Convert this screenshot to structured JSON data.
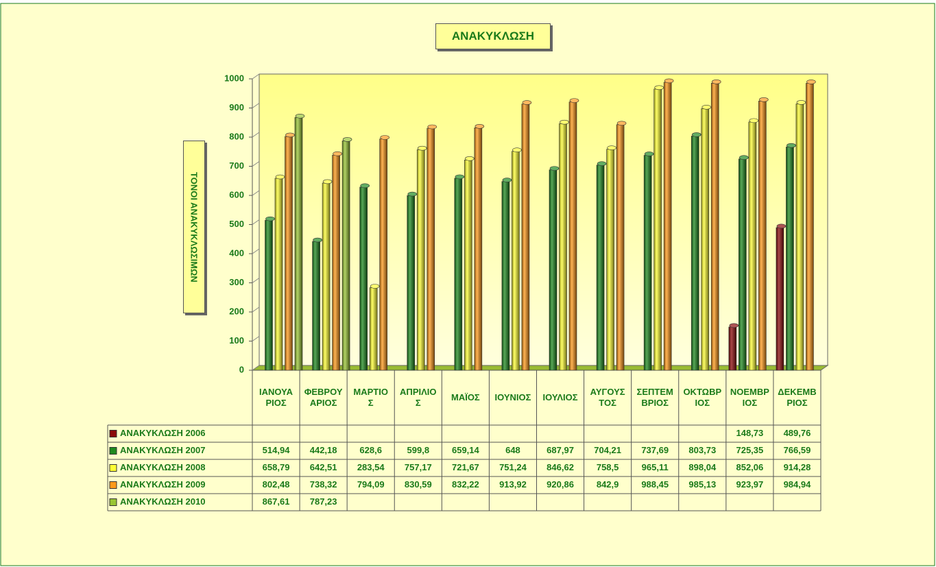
{
  "chart_data": {
    "type": "bar3d",
    "title": "ΑΝΑΚΥΚΛΩΣΗ",
    "y_label": "ΤΟΝΟΙ ΑΝΑΚΥΚΛΩΣΙΜΩΝ",
    "categories": [
      "ΙΑΝΟΥΑΡΙΟΣ",
      "ΦΕΒΡΟΥΑΡΙΟΣ",
      "ΜΑΡΤΙΟΣ",
      "ΑΠΡΙΛΙΟΣ",
      "ΜΑΪΟΣ",
      "ΙΟΥΝΙΟΣ",
      "ΙΟΥΛΙΟΣ",
      "ΑΥΓΟΥΣΤΟΣ",
      "ΣΕΠΤΕΜΒΡΙΟΣ",
      "ΟΚΤΩΒΡΙΟΣ",
      "ΝΟΕΜΒΡΙΟΣ",
      "ΔΕΚΕΜΒΡΙΟΣ"
    ],
    "series": [
      {
        "name": "ΑΝΑΚΥΚΛΩΣΗ 2006",
        "color": "#8b0a0a",
        "values": [
          null,
          null,
          null,
          null,
          null,
          null,
          null,
          null,
          null,
          null,
          148.73,
          489.76
        ],
        "value_labels": [
          null,
          null,
          null,
          null,
          null,
          null,
          null,
          null,
          null,
          null,
          "148,73",
          "489,76"
        ]
      },
      {
        "name": "ΑΝΑΚΥΚΛΩΣΗ 2007",
        "color": "#1f8a1f",
        "values": [
          514.94,
          442.18,
          628.6,
          599.8,
          659.14,
          648,
          687.97,
          704.21,
          737.69,
          803.73,
          725.35,
          766.59
        ],
        "value_labels": [
          "514,94",
          "442,18",
          "628,6",
          "599,8",
          "659,14",
          "648",
          "687,97",
          "704,21",
          "737,69",
          "803,73",
          "725,35",
          "766,59"
        ]
      },
      {
        "name": "ΑΝΑΚΥΚΛΩΣΗ 2008",
        "color": "#ffff33",
        "values": [
          658.79,
          642.51,
          283.54,
          757.17,
          721.67,
          751.24,
          846.62,
          758.5,
          965.11,
          898.04,
          852.06,
          914.28
        ],
        "value_labels": [
          "658,79",
          "642,51",
          "283,54",
          "757,17",
          "721,67",
          "751,24",
          "846,62",
          "758,5",
          "965,11",
          "898,04",
          "852,06",
          "914,28"
        ]
      },
      {
        "name": "ΑΝΑΚΥΚΛΩΣΗ 2009",
        "color": "#ff9a1a",
        "values": [
          802.48,
          738.32,
          794.09,
          830.59,
          832.22,
          913.92,
          920.86,
          842.9,
          988.45,
          985.13,
          923.97,
          984.94
        ],
        "value_labels": [
          "802,48",
          "738,32",
          "794,09",
          "830,59",
          "832,22",
          "913,92",
          "920,86",
          "842,9",
          "988,45",
          "985,13",
          "923,97",
          "984,94"
        ]
      },
      {
        "name": "ΑΝΑΚΥΚΛΩΣΗ 2010",
        "color": "#99c633",
        "values": [
          867.61,
          787.23,
          null,
          null,
          null,
          null,
          null,
          null,
          null,
          null,
          null,
          null
        ],
        "value_labels": [
          "867,61",
          "787,23",
          null,
          null,
          null,
          null,
          null,
          null,
          null,
          null,
          null,
          null
        ]
      }
    ],
    "ylim": [
      0,
      1000
    ],
    "yticks": [
      0,
      100,
      200,
      300,
      400,
      500,
      600,
      700,
      800,
      900,
      1000
    ]
  }
}
